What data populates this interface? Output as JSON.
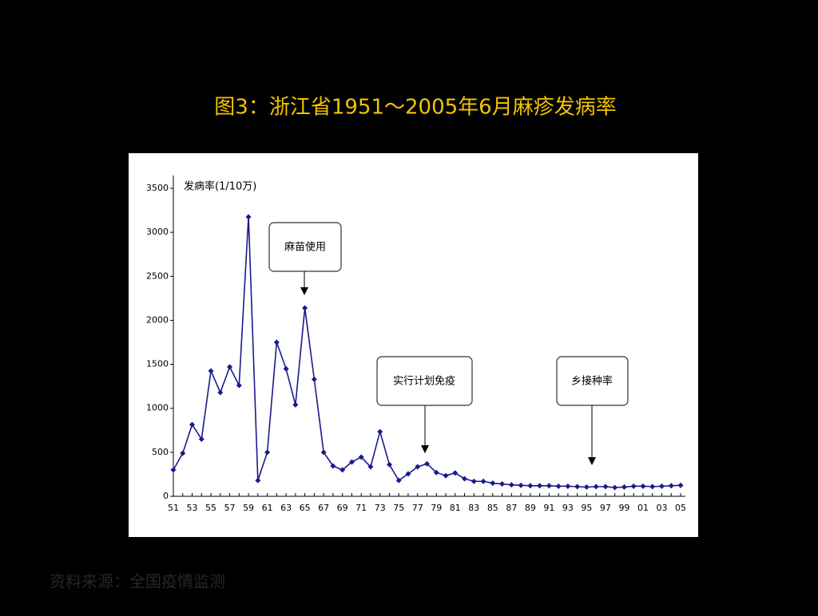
{
  "chart_data": {
    "type": "line",
    "title": "图3：浙江省1951～2005年6月麻疹发病率",
    "y_label": "发病率(1/10万)",
    "categories": [
      "51",
      null,
      "53",
      null,
      "55",
      null,
      "57",
      null,
      "59",
      null,
      "61",
      null,
      "63",
      null,
      "65",
      null,
      "67",
      null,
      "69",
      null,
      "71",
      null,
      "73",
      null,
      "75",
      null,
      "77",
      null,
      "79",
      null,
      "81",
      null,
      "83",
      null,
      "85",
      null,
      "87",
      null,
      "89",
      null,
      "91",
      null,
      "93",
      null,
      "95",
      null,
      "97",
      null,
      "99",
      null,
      "01",
      null,
      "03",
      null,
      "05"
    ],
    "values": [
      300,
      490,
      815,
      650,
      1425,
      1180,
      1470,
      1260,
      3175,
      180,
      500,
      1750,
      1450,
      1040,
      2140,
      1330,
      500,
      345,
      300,
      390,
      445,
      335,
      735,
      360,
      180,
      255,
      335,
      370,
      270,
      235,
      265,
      200,
      170,
      170,
      150,
      140,
      130,
      125,
      120,
      120,
      120,
      115,
      115,
      110,
      105,
      110,
      110,
      100,
      105,
      115,
      115,
      110,
      115,
      120,
      125
    ],
    "color": "#1a1a8c",
    "ylim": [
      0,
      3500
    ],
    "yticks": [
      0,
      500,
      1000,
      1500,
      2000,
      2500,
      3000,
      3500
    ],
    "annotations": [
      "麻苗使用",
      "实行计划免疫",
      "乡接种率"
    ],
    "source": "资料来源：全国疫情监测"
  }
}
